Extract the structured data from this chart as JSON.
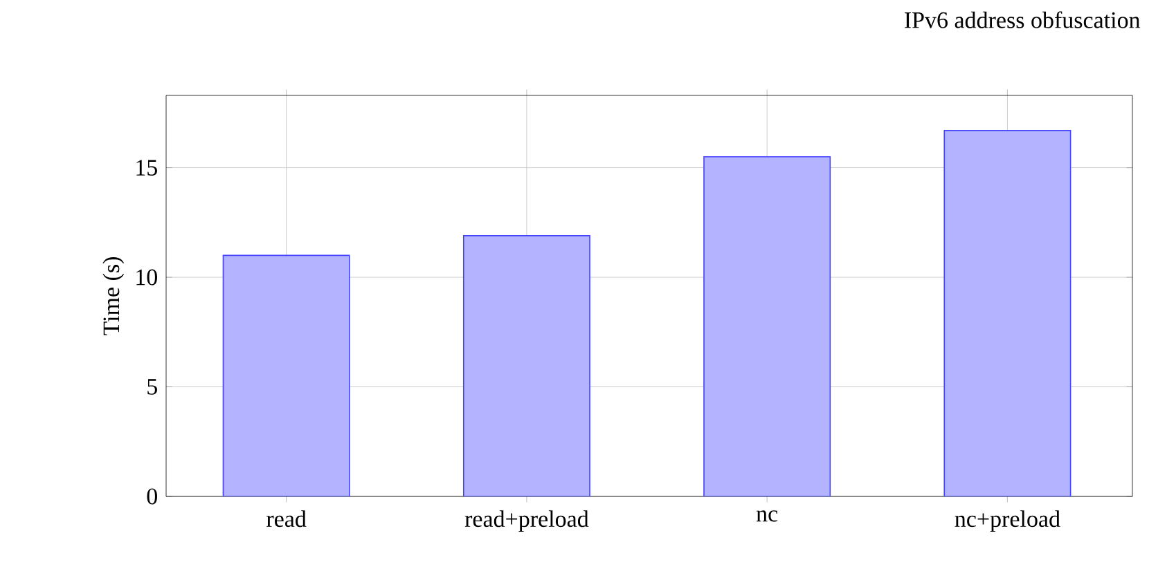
{
  "chart_data": {
    "type": "bar",
    "title": "IPv6 address obfuscation",
    "ylabel": "Time (s)",
    "categories": [
      "read",
      "read+preload",
      "nc",
      "nc+preload"
    ],
    "values": [
      11.0,
      11.9,
      15.5,
      16.7
    ],
    "color": "#b3b3ff",
    "ylim": [
      0,
      18.3
    ],
    "yticks": [
      0,
      5,
      10,
      15
    ],
    "grid": true
  }
}
